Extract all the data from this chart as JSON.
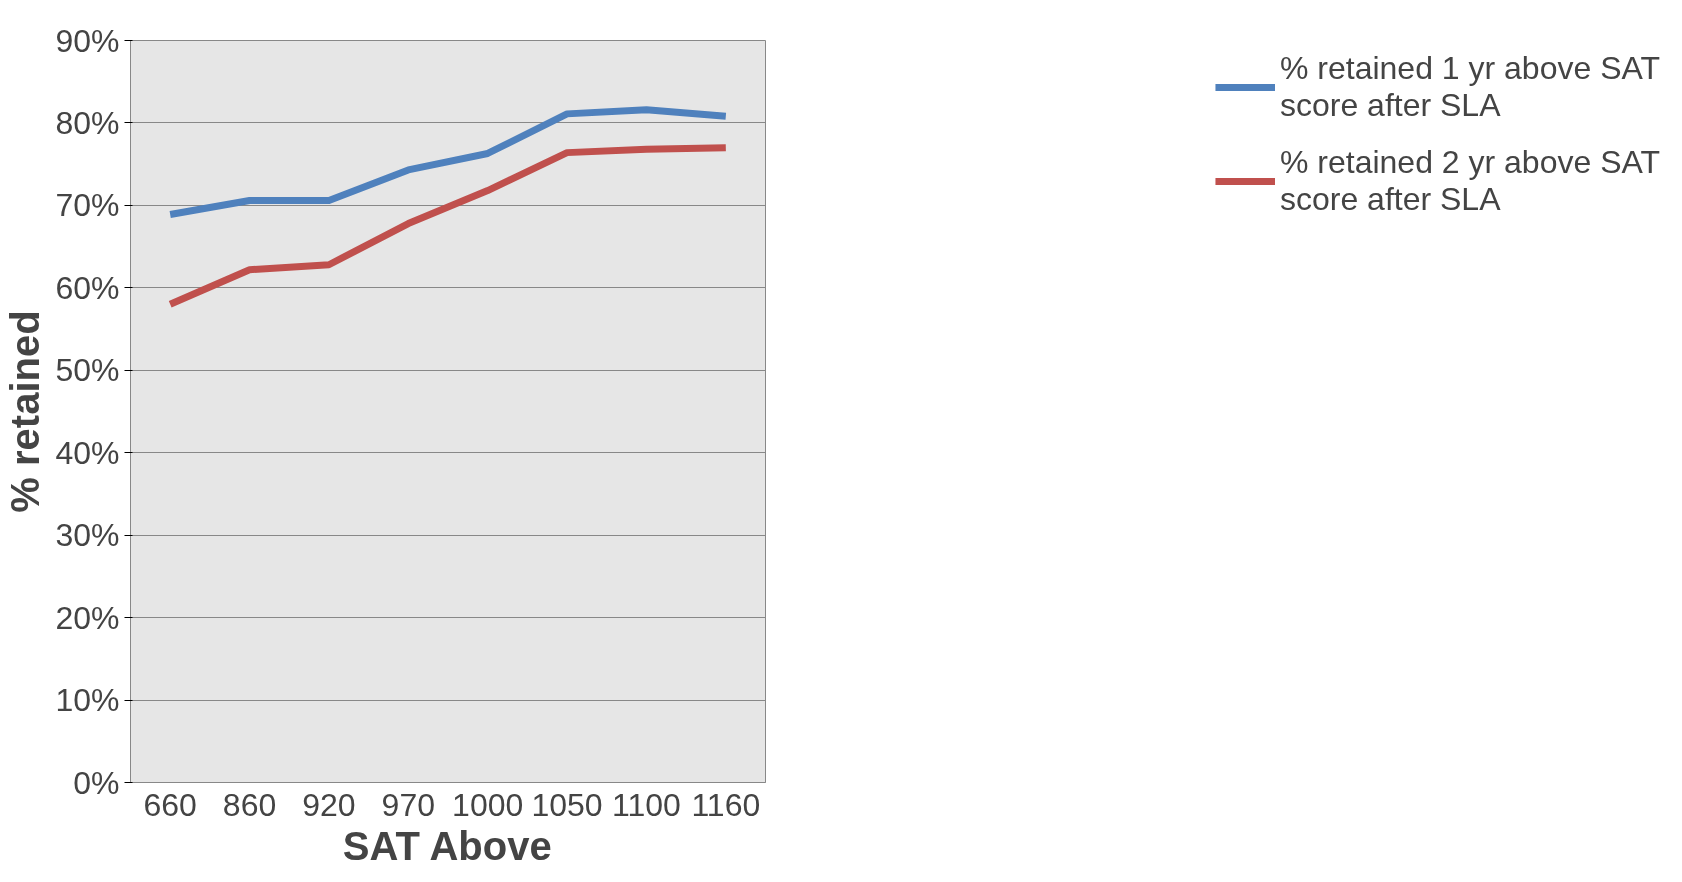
{
  "chart_data": {
    "type": "line",
    "xlabel": "SAT Above",
    "ylabel": "% retained",
    "categories": [
      "660",
      "860",
      "920",
      "970",
      "1000",
      "1050",
      "1100",
      "1160"
    ],
    "series": [
      {
        "name": "% retained 1 yr above SAT score after SLA",
        "color": "#4f81bd",
        "values": [
          68.9,
          70.6,
          70.6,
          74.3,
          76.3,
          81.1,
          81.6,
          80.8
        ]
      },
      {
        "name": "% retained 2 yr above SAT score after SLA",
        "color": "#c0504d",
        "values": [
          58.0,
          62.2,
          62.8,
          67.8,
          71.8,
          76.4,
          76.8,
          77.0
        ]
      }
    ],
    "ylim": [
      0,
      90
    ],
    "yticks": [
      {
        "value": 0,
        "label": "0%"
      },
      {
        "value": 10,
        "label": "10%"
      },
      {
        "value": 20,
        "label": "20%"
      },
      {
        "value": 30,
        "label": "30%"
      },
      {
        "value": 40,
        "label": "40%"
      },
      {
        "value": 50,
        "label": "50%"
      },
      {
        "value": 60,
        "label": "60%"
      },
      {
        "value": 70,
        "label": "70%"
      },
      {
        "value": 80,
        "label": "80%"
      },
      {
        "value": 90,
        "label": "90%"
      }
    ],
    "grid": "y",
    "legend": "right",
    "marker": "none",
    "line_style": "solid"
  }
}
